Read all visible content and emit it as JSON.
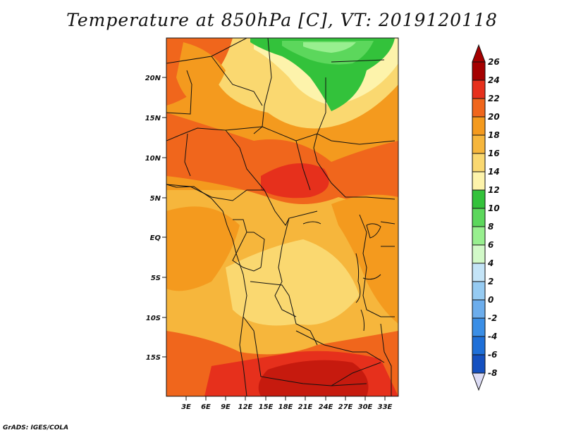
{
  "title": "Temperature at 850hPa [C], VT: 2019120118",
  "credit": "GrADS: IGES/COLA",
  "map": {
    "lat_labels": [
      "20N",
      "15N",
      "10N",
      "5N",
      "EQ",
      "5S",
      "10S",
      "15S"
    ],
    "lon_labels": [
      "3E",
      "6E",
      "9E",
      "12E",
      "15E",
      "18E",
      "21E",
      "24E",
      "27E",
      "30E",
      "33E"
    ]
  },
  "colorbar": {
    "levels": [
      {
        "label": "26",
        "color": "#a50000"
      },
      {
        "label": "24",
        "color": "#e6301c"
      },
      {
        "label": "22",
        "color": "#f0661c"
      },
      {
        "label": "20",
        "color": "#f49a1e"
      },
      {
        "label": "18",
        "color": "#f6b63c"
      },
      {
        "label": "16",
        "color": "#fad870"
      },
      {
        "label": "14",
        "color": "#fdf3ab"
      },
      {
        "label": "12",
        "color": "#33c23b"
      },
      {
        "label": "10",
        "color": "#5cd75c"
      },
      {
        "label": "8",
        "color": "#98ef8f"
      },
      {
        "label": "6",
        "color": "#d2f9c8"
      },
      {
        "label": "4",
        "color": "#c4e4f7"
      },
      {
        "label": "2",
        "color": "#96cbf2"
      },
      {
        "label": "0",
        "color": "#6cadec"
      },
      {
        "label": "-2",
        "color": "#3a8ee6"
      },
      {
        "label": "-4",
        "color": "#1e6fd8"
      },
      {
        "label": "-6",
        "color": "#1450c0"
      },
      {
        "label": "-8",
        "color": "#0a2a96"
      }
    ],
    "below_color": "#dcdcf5",
    "above_color": "#a50000"
  }
}
